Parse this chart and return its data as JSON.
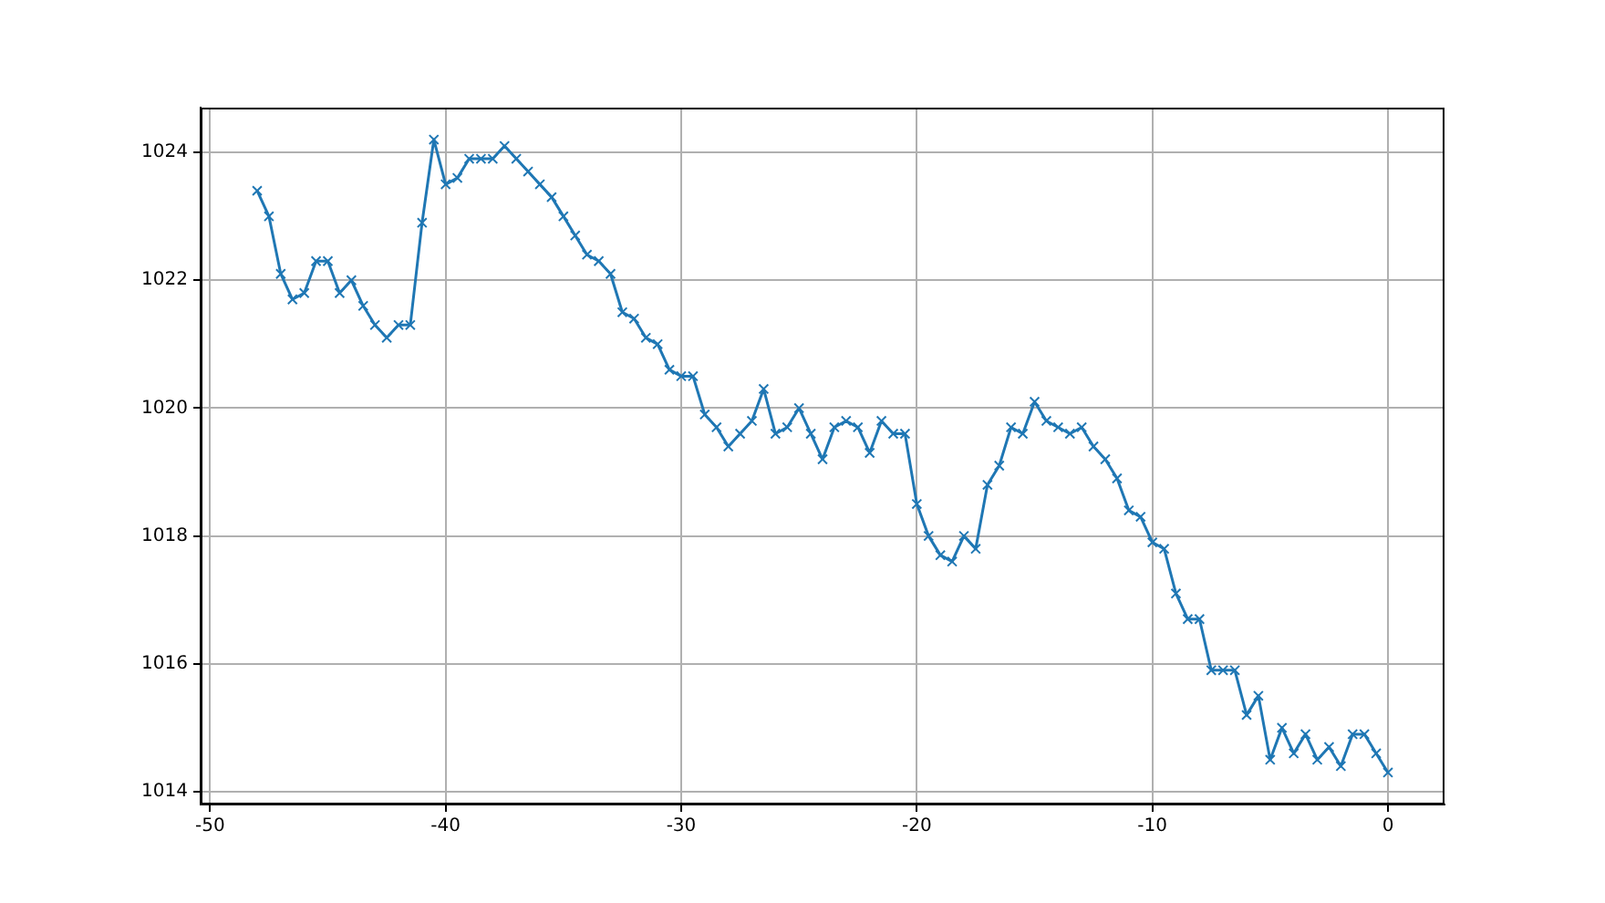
{
  "chart_data": {
    "type": "line",
    "x": [
      -48,
      -47.5,
      -47,
      -46.5,
      -46,
      -45.5,
      -45,
      -44.5,
      -44,
      -43.5,
      -43,
      -42.5,
      -42,
      -41.5,
      -41,
      -40.5,
      -40,
      -39.5,
      -39,
      -38.5,
      -38,
      -37.5,
      -37,
      -36.5,
      -36,
      -35.5,
      -35,
      -34.5,
      -34,
      -33.5,
      -33,
      -32.5,
      -32,
      -31.5,
      -31,
      -30.5,
      -30,
      -29.5,
      -29,
      -28.5,
      -28,
      -27.5,
      -27,
      -26.5,
      -26,
      -25.5,
      -25,
      -24.5,
      -24,
      -23.5,
      -23,
      -22.5,
      -22,
      -21.5,
      -21,
      -20.5,
      -20,
      -19.5,
      -19,
      -18.5,
      -18,
      -17.5,
      -17,
      -16.5,
      -16,
      -15.5,
      -15,
      -14.5,
      -14,
      -13.5,
      -13,
      -12.5,
      -12,
      -11.5,
      -11,
      -10.5,
      -10,
      -9.5,
      -9,
      -8.5,
      -8,
      -7.5,
      -7,
      -6.5,
      -6,
      -5.5,
      -5,
      -4.5,
      -4,
      -3.5,
      -3,
      -2.5,
      -2,
      -1.5,
      -1,
      -0.5,
      0
    ],
    "values": [
      1023.4,
      1023.0,
      1022.1,
      1021.7,
      1021.8,
      1022.3,
      1022.3,
      1021.8,
      1022.0,
      1021.6,
      1021.3,
      1021.1,
      1021.3,
      1021.3,
      1022.9,
      1024.2,
      1023.5,
      1023.6,
      1023.9,
      1023.9,
      1023.9,
      1024.1,
      1023.9,
      1023.7,
      1023.5,
      1023.3,
      1023.0,
      1022.7,
      1022.4,
      1022.3,
      1022.1,
      1021.5,
      1021.4,
      1021.1,
      1021.0,
      1020.6,
      1020.5,
      1020.5,
      1019.9,
      1019.7,
      1019.4,
      1019.6,
      1019.8,
      1020.3,
      1019.6,
      1019.7,
      1020.0,
      1019.6,
      1019.2,
      1019.7,
      1019.8,
      1019.7,
      1019.3,
      1019.8,
      1019.6,
      1019.6,
      1018.5,
      1018.0,
      1017.7,
      1017.6,
      1018.0,
      1017.8,
      1018.8,
      1019.1,
      1019.7,
      1019.6,
      1020.1,
      1019.8,
      1019.7,
      1019.6,
      1019.7,
      1019.4,
      1019.2,
      1018.9,
      1018.4,
      1018.3,
      1017.9,
      1017.8,
      1017.1,
      1016.7,
      1016.7,
      1015.9,
      1015.9,
      1015.9,
      1015.2,
      1015.5,
      1014.5,
      1015.0,
      1014.6,
      1014.9,
      1014.5,
      1014.7,
      1014.4,
      1014.9,
      1014.9,
      1014.6,
      1014.3
    ],
    "color": "#1f77b4",
    "xlim": [
      -50.4,
      2.4
    ],
    "ylim": [
      1013.8,
      1024.7
    ],
    "xticks": [
      -50,
      -40,
      -30,
      -20,
      -10,
      0
    ],
    "yticks": [
      1014,
      1016,
      1018,
      1020,
      1022,
      1024
    ],
    "grid": true,
    "marker": "cross",
    "line_style": "solid"
  }
}
